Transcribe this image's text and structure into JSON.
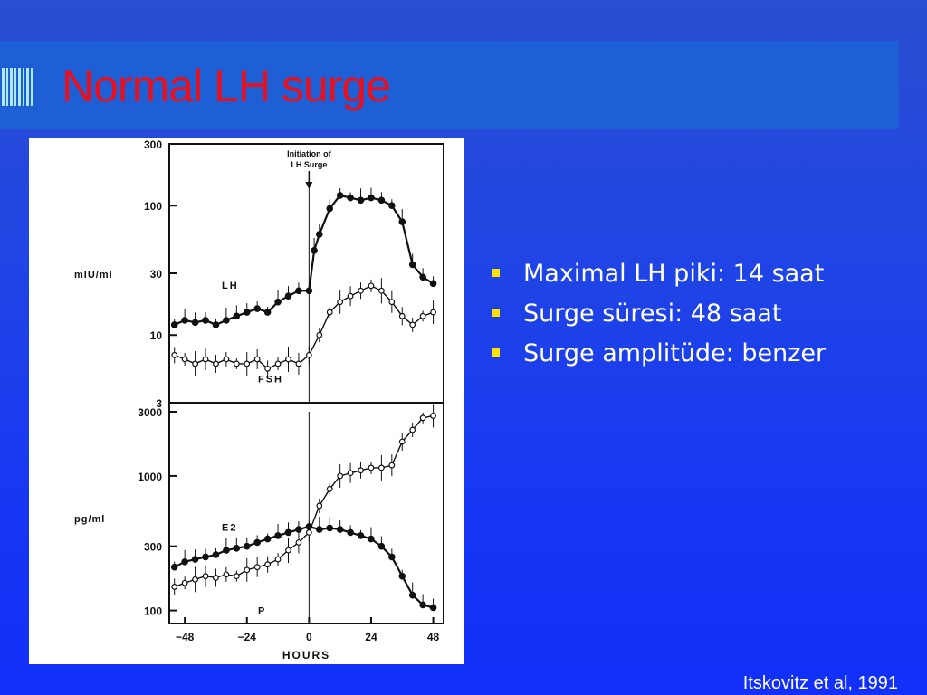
{
  "slide": {
    "title": "Normal LH surge",
    "citation": "Itskovitz et al, 1991",
    "bullets": [
      "Maximal LH piki: 14 saat",
      "Surge  süresi: 48 saat",
      "Surge amplitüde: benzer"
    ]
  },
  "chart_data": [
    {
      "type": "line",
      "panel": "top",
      "ylabel": "mIU/ml",
      "yscale": "log",
      "ylim": [
        3,
        300
      ],
      "yticks": [
        300,
        100,
        30,
        10,
        3
      ],
      "xlim": [
        -54,
        52
      ],
      "annotation": "Initiation of LH Surge",
      "annotation_x": 0,
      "series": [
        {
          "name": "LH",
          "marker": "filled",
          "x": [
            -52,
            -48,
            -44,
            -40,
            -36,
            -32,
            -28,
            -24,
            -20,
            -16,
            -12,
            -8,
            -4,
            0,
            2,
            4,
            8,
            12,
            16,
            20,
            24,
            28,
            32,
            36,
            40,
            44,
            48
          ],
          "y": [
            12,
            13,
            12.5,
            13,
            12,
            13,
            14,
            15,
            16,
            15,
            18,
            20,
            22,
            22,
            45,
            60,
            95,
            120,
            115,
            110,
            115,
            110,
            100,
            75,
            35,
            28,
            25
          ]
        },
        {
          "name": "FSH",
          "marker": "open",
          "x": [
            -52,
            -48,
            -44,
            -40,
            -36,
            -32,
            -28,
            -24,
            -20,
            -16,
            -12,
            -8,
            -4,
            0,
            4,
            8,
            12,
            16,
            20,
            24,
            28,
            32,
            36,
            40,
            44,
            48
          ],
          "y": [
            7,
            6.5,
            6,
            6.5,
            6,
            6.5,
            6,
            6,
            6.5,
            5.5,
            6,
            6.5,
            6,
            7,
            10,
            15,
            18,
            20,
            22,
            24,
            22,
            18,
            14,
            12,
            14,
            15
          ]
        }
      ]
    },
    {
      "type": "line",
      "panel": "bottom",
      "ylabel": "pg/ml",
      "xlabel": "HOURS",
      "yscale": "log",
      "ylim": [
        80,
        3000
      ],
      "yticks": [
        3000,
        1000,
        300,
        100
      ],
      "xticks": [
        -48,
        -24,
        0,
        24,
        48
      ],
      "xlim": [
        -54,
        52
      ],
      "series": [
        {
          "name": "E2",
          "marker": "filled",
          "x": [
            -52,
            -48,
            -44,
            -40,
            -36,
            -32,
            -28,
            -24,
            -20,
            -16,
            -12,
            -8,
            -4,
            0,
            4,
            8,
            12,
            16,
            20,
            24,
            28,
            32,
            36,
            40,
            44,
            48
          ],
          "y": [
            210,
            230,
            240,
            250,
            260,
            280,
            290,
            300,
            320,
            340,
            360,
            380,
            400,
            420,
            400,
            410,
            400,
            380,
            360,
            340,
            300,
            250,
            180,
            130,
            110,
            105
          ]
        },
        {
          "name": "P",
          "marker": "open",
          "x": [
            -52,
            -48,
            -44,
            -40,
            -36,
            -32,
            -28,
            -24,
            -20,
            -16,
            -12,
            -8,
            -4,
            0,
            4,
            8,
            12,
            16,
            20,
            24,
            28,
            32,
            36,
            40,
            44,
            48
          ],
          "y": [
            150,
            160,
            170,
            180,
            175,
            185,
            180,
            200,
            210,
            220,
            240,
            280,
            320,
            380,
            600,
            800,
            1000,
            1050,
            1100,
            1150,
            1150,
            1200,
            1800,
            2200,
            2700,
            2800
          ]
        }
      ]
    }
  ]
}
